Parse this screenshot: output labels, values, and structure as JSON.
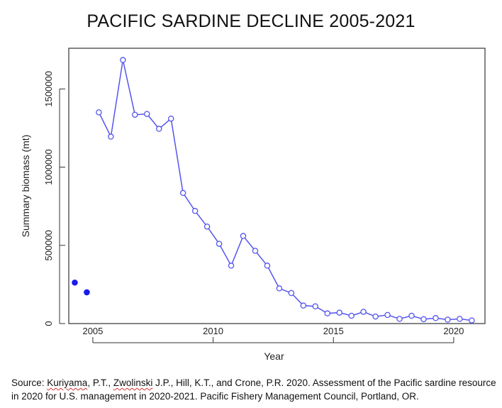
{
  "title": "PACIFIC SARDINE DECLINE 2005-2021",
  "source": {
    "prefix": "Source: ",
    "author1": "Kuriyama",
    "mid1": ", P.T., ",
    "author2": "Zwolinski",
    "rest": " J.P., Hill, K.T., and Crone, P.R. 2020. Assessment of the Pacific sardine resource in 2020 for U.S. management in 2020-2021. Pacific Fishery Management Council, Portland, OR."
  },
  "colors": {
    "line": "#5555ee",
    "point_solid": "#1a1aee",
    "axis": "#333333"
  },
  "chart_data": {
    "type": "line",
    "title": "",
    "xlabel": "Year",
    "ylabel": "Summary biomass (mt)",
    "xlim": [
      2004,
      2021.3
    ],
    "ylim": [
      0,
      1760000
    ],
    "xticks": [
      2005,
      2010,
      2015,
      2020
    ],
    "yticks": [
      0,
      500000,
      1000000,
      1500000
    ],
    "grid": false,
    "series": [
      {
        "style": "line-with-open-circles",
        "x": [
          2005.25,
          2005.75,
          2006.25,
          2006.75,
          2007.25,
          2007.75,
          2008.25,
          2008.75,
          2009.25,
          2009.75,
          2010.25,
          2010.75,
          2011.25,
          2011.75,
          2012.25,
          2012.75,
          2013.25,
          2013.75,
          2014.25,
          2014.75,
          2015.25,
          2015.75,
          2016.25,
          2016.75,
          2017.25,
          2017.75,
          2018.25,
          2018.75,
          2019.25,
          2019.75,
          2020.25,
          2020.75
        ],
        "y": [
          1350000,
          1195000,
          1685000,
          1335000,
          1340000,
          1245000,
          1310000,
          835000,
          720000,
          620000,
          510000,
          370000,
          560000,
          465000,
          370000,
          225000,
          195000,
          115000,
          110000,
          65000,
          70000,
          50000,
          75000,
          45000,
          55000,
          30000,
          50000,
          28000,
          35000,
          25000,
          30000,
          20000
        ]
      },
      {
        "style": "solid-points",
        "x": [
          2004.25,
          2004.75
        ],
        "y": [
          262000,
          200000
        ]
      }
    ]
  }
}
